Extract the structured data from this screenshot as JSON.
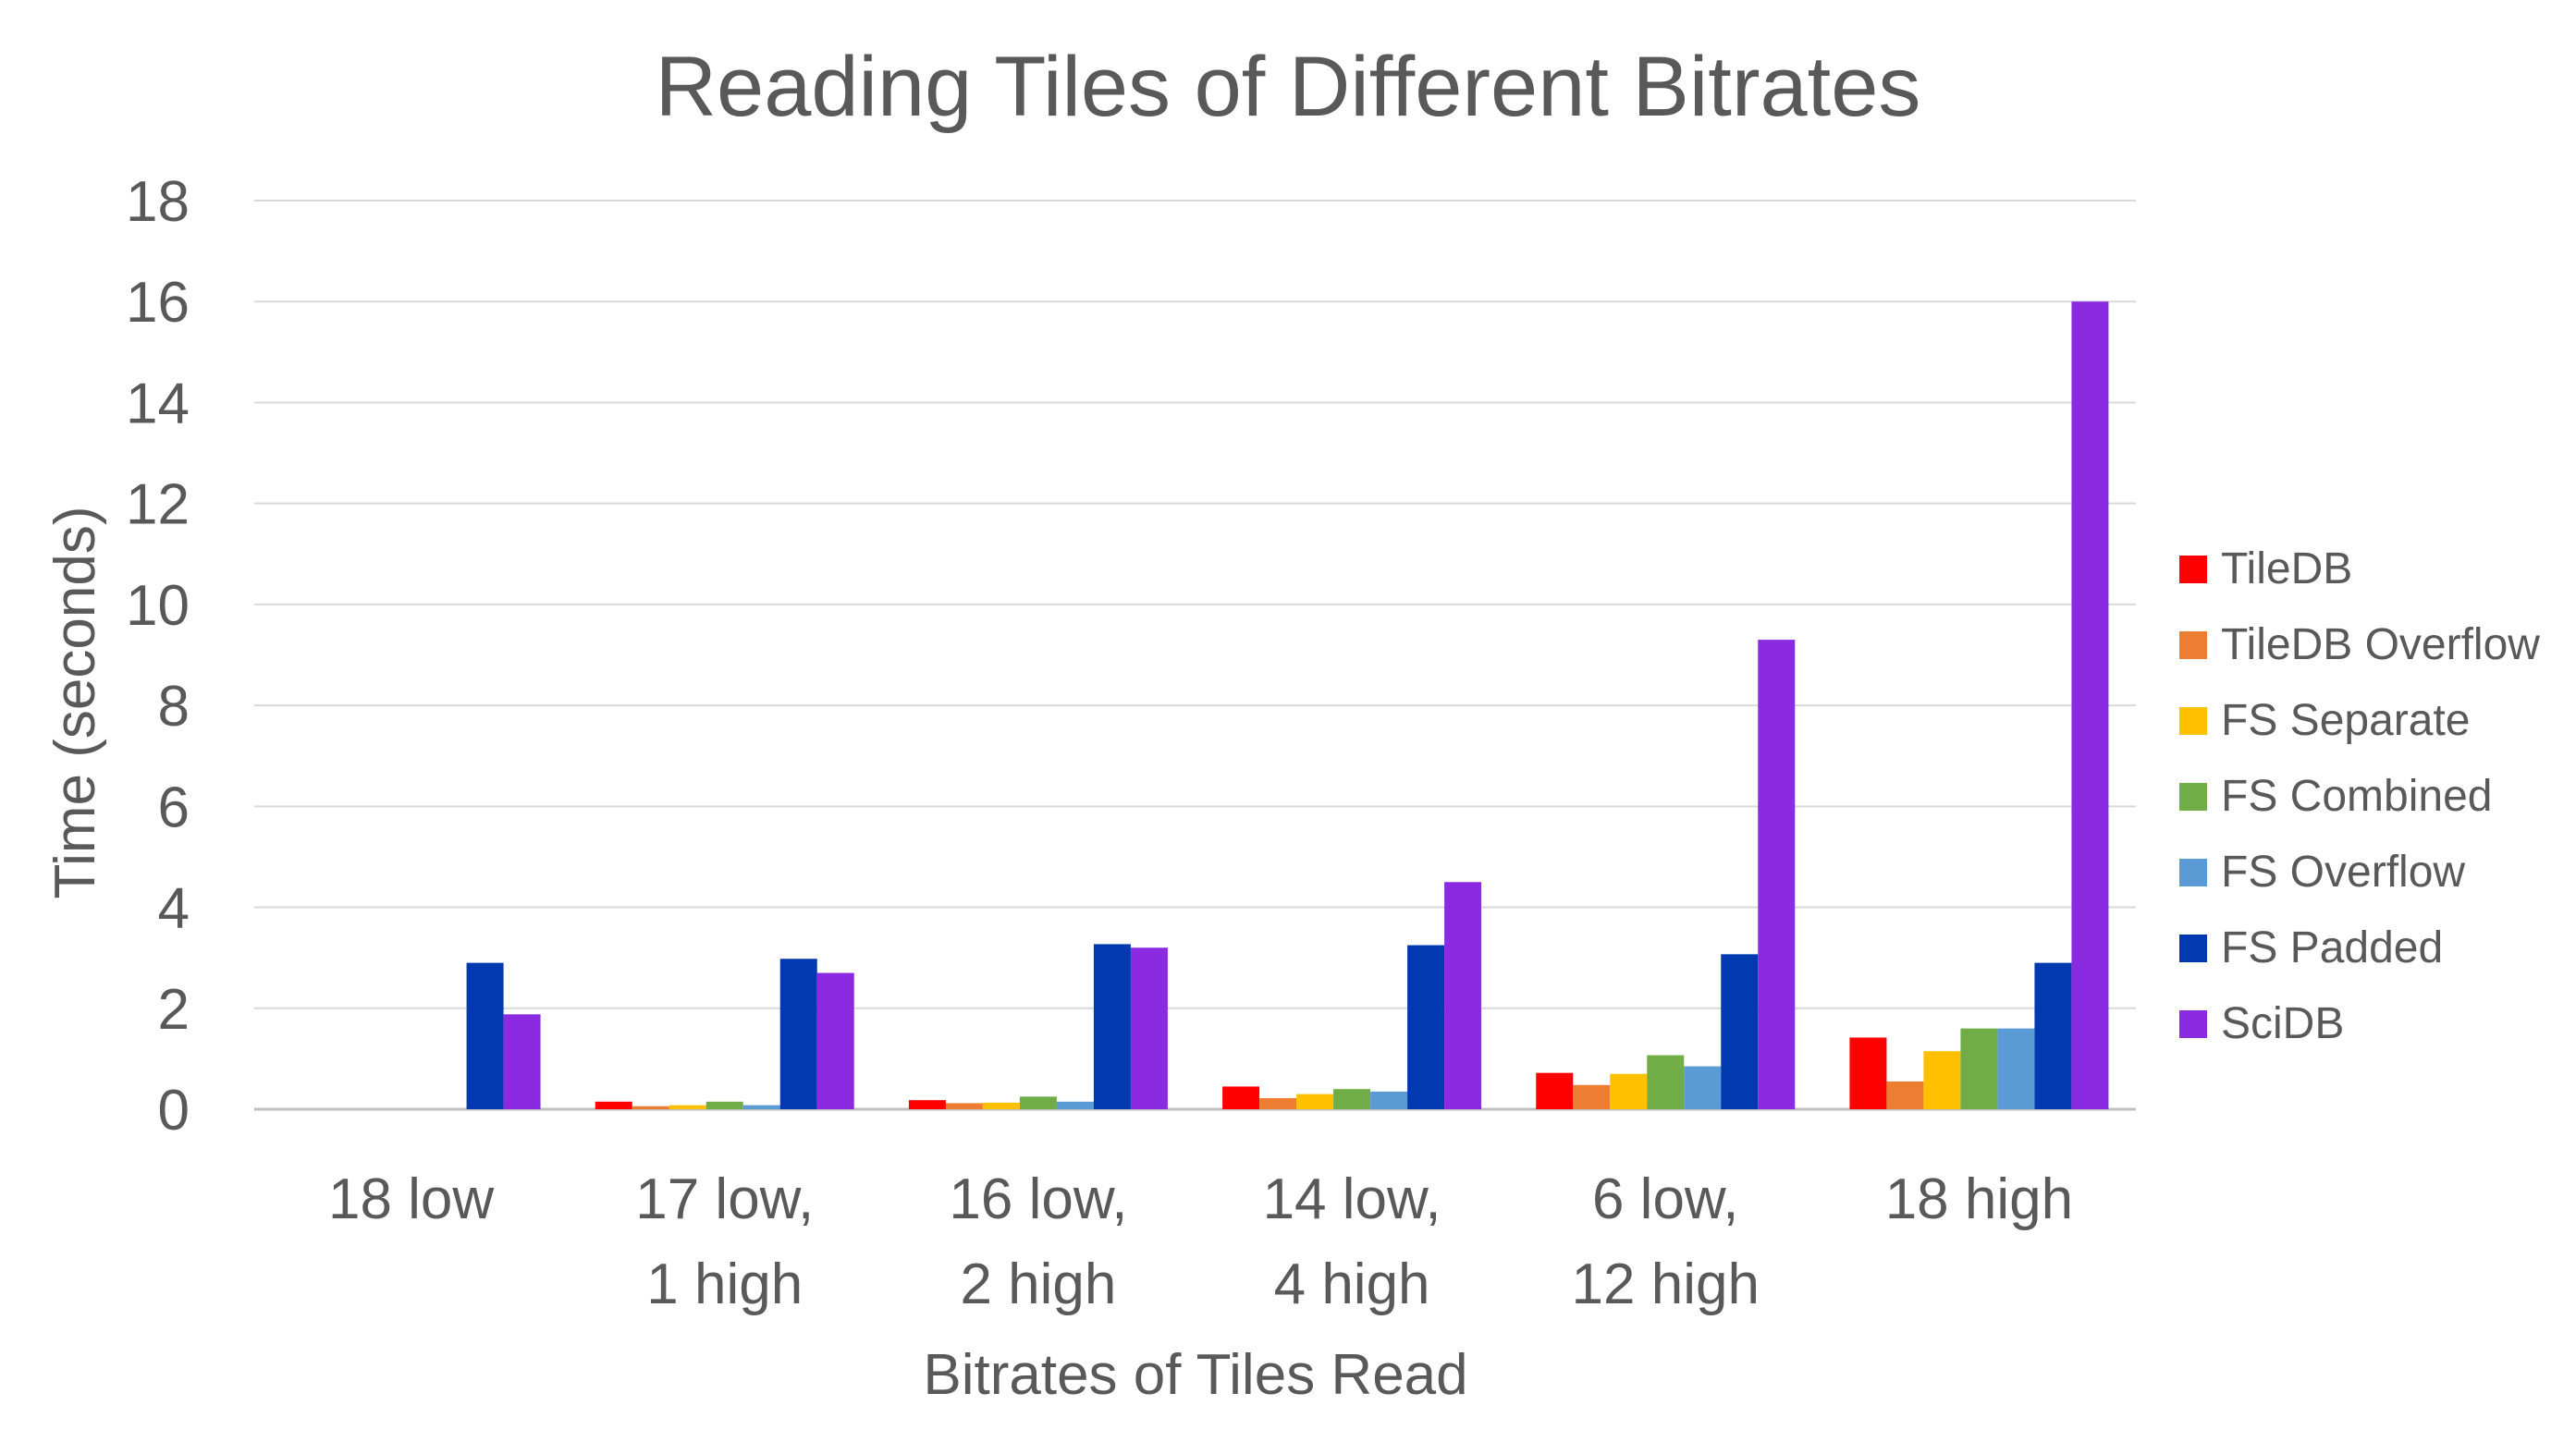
{
  "chart_data": {
    "type": "bar",
    "title": "Reading Tiles of Different Bitrates",
    "xlabel": "Bitrates of Tiles Read",
    "ylabel": "Time (seconds)",
    "ylim": [
      0,
      18
    ],
    "yticks": [
      0,
      2,
      4,
      6,
      8,
      10,
      12,
      14,
      16,
      18
    ],
    "grid": true,
    "legend_position": "right",
    "categories": [
      [
        "18 low"
      ],
      [
        "17 low,",
        "1 high"
      ],
      [
        "16 low,",
        "2 high"
      ],
      [
        "14 low,",
        "4 high"
      ],
      [
        "6 low,",
        "12 high"
      ],
      [
        "18 high"
      ]
    ],
    "series": [
      {
        "name": "TileDB",
        "color": "#ff0000",
        "values": [
          0,
          0.15,
          0.18,
          0.45,
          0.72,
          1.42
        ]
      },
      {
        "name": "TileDB Overflow",
        "color": "#ed7d31",
        "values": [
          0,
          0.06,
          0.12,
          0.22,
          0.48,
          0.55
        ]
      },
      {
        "name": "FS Separate",
        "color": "#ffc000",
        "values": [
          0,
          0.08,
          0.13,
          0.3,
          0.7,
          1.15
        ]
      },
      {
        "name": "FS Combined",
        "color": "#70ad47",
        "values": [
          0,
          0.15,
          0.25,
          0.4,
          1.07,
          1.6
        ]
      },
      {
        "name": "FS Overflow",
        "color": "#5b9bd5",
        "values": [
          0,
          0.08,
          0.15,
          0.35,
          0.85,
          1.6
        ]
      },
      {
        "name": "FS Padded",
        "color": "#0039b0",
        "values": [
          2.9,
          2.98,
          3.27,
          3.25,
          3.07,
          2.9
        ]
      },
      {
        "name": "SciDB",
        "color": "#8a2be2",
        "values": [
          1.88,
          2.7,
          3.2,
          4.5,
          9.3,
          16.0
        ]
      }
    ]
  }
}
